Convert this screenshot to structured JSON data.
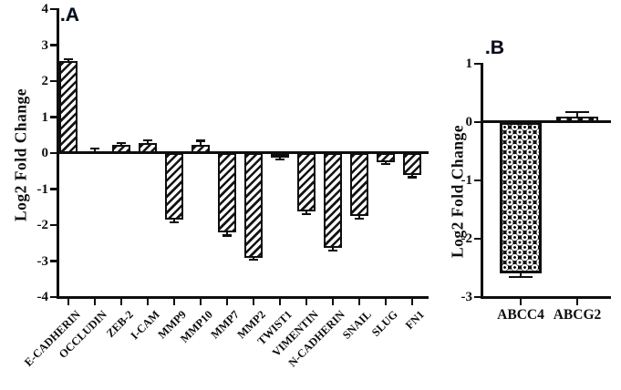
{
  "figure": {
    "background": "#ffffff",
    "ink": "#0e0e0e"
  },
  "chart_data": [
    {
      "type": "bar",
      "panel_label": ".A",
      "ylabel": "Log2 Fold Change",
      "ylim": [
        -4,
        4
      ],
      "yticks": [
        4,
        3,
        2,
        1,
        0,
        -1,
        -2,
        -3,
        -4
      ],
      "grid": false,
      "legend": "none",
      "bar_fill_pattern": "diagonal-hatch",
      "categories": [
        "E-CADHERIN",
        "OCCLUDIN",
        "ZEB-2",
        "I-CAM",
        "MMP9",
        "MMP10",
        "MMP7",
        "MMP2",
        "TWIST1",
        "VIMENTIN",
        "N-CADHERIN",
        "SNAIL",
        "SLUG",
        "FN1"
      ],
      "values": [
        2.55,
        0.04,
        0.22,
        0.28,
        -1.85,
        0.22,
        -2.2,
        -2.9,
        -0.12,
        -1.62,
        -2.63,
        -1.75,
        -0.25,
        -0.6
      ],
      "errors": [
        0.06,
        0.08,
        0.06,
        0.08,
        0.07,
        0.12,
        0.09,
        0.07,
        0.05,
        0.08,
        0.07,
        0.08,
        0.05,
        0.07
      ]
    },
    {
      "type": "bar",
      "panel_label": ".B",
      "ylabel": "Log2 Fold Change",
      "ylim": [
        -3,
        1
      ],
      "yticks": [
        1,
        0,
        -1,
        -2,
        -3
      ],
      "grid": false,
      "legend": "none",
      "bar_fill_patterns": [
        "checker-dots",
        "white-dashes"
      ],
      "categories": [
        "ABCC4",
        "ABCG2"
      ],
      "values": [
        -2.6,
        0.1
      ],
      "errors": [
        0.06,
        0.07
      ]
    }
  ]
}
